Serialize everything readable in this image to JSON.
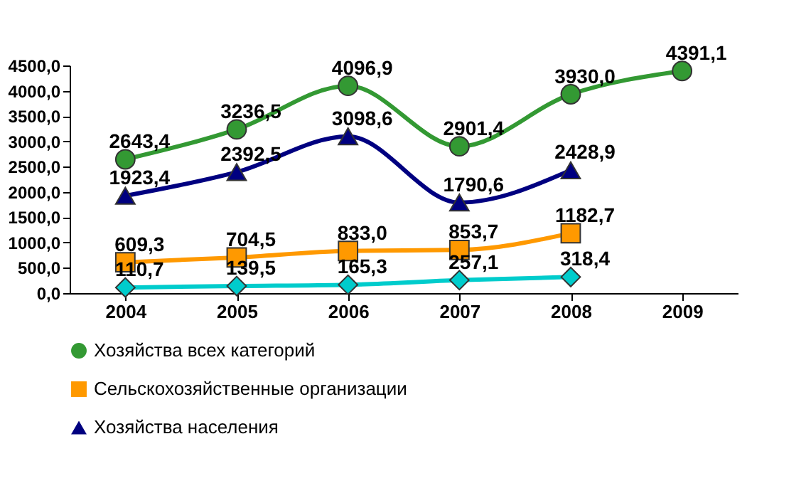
{
  "chart_data": {
    "type": "line",
    "categories": [
      "2004",
      "2005",
      "2006",
      "2007",
      "2008",
      "2009"
    ],
    "ylim": [
      0,
      4500
    ],
    "yticks": [
      {
        "value": 0,
        "label": "0,0"
      },
      {
        "value": 500,
        "label": "500,0"
      },
      {
        "value": 1000,
        "label": "1000,0"
      },
      {
        "value": 1500,
        "label": "1500,0"
      },
      {
        "value": 2000,
        "label": "2000,0"
      },
      {
        "value": 2500,
        "label": "2500,0"
      },
      {
        "value": 3000,
        "label": "3000,0"
      },
      {
        "value": 3500,
        "label": "3500,0"
      },
      {
        "value": 4000,
        "label": "4000,0"
      },
      {
        "value": 4500,
        "label": "4500,0"
      }
    ],
    "grid": false,
    "legend": "bottom",
    "series": [
      {
        "name": "Хозяйства всех категорий",
        "color": "#339933",
        "marker": "circle",
        "values": [
          2643.4,
          3236.5,
          4096.9,
          2901.4,
          3930.0,
          4391.1
        ],
        "value_labels": [
          "2643,4",
          "3236,5",
          "4096,9",
          "2901,4",
          "3930,0",
          "4391,1"
        ]
      },
      {
        "name": "Сельскохозяйственные организации",
        "color": "#ff9900",
        "marker": "square",
        "values": [
          609.3,
          704.5,
          833.0,
          853.7,
          1182.7,
          null
        ],
        "value_labels": [
          "609,3",
          "704,5",
          "833,0",
          "853,7",
          "1182,7",
          null
        ]
      },
      {
        "name": "Хозяйства населения",
        "color": "#000080",
        "marker": "triangle",
        "values": [
          1923.4,
          2392.5,
          3098.6,
          1790.6,
          2428.9,
          null
        ],
        "value_labels": [
          "1923,4",
          "2392,5",
          "3098,6",
          "1790,6",
          "2428,9",
          null
        ]
      },
      {
        "color": "#00cccc",
        "marker": "diamond",
        "values": [
          110.7,
          139.5,
          165.3,
          257.1,
          318.4,
          null
        ],
        "value_labels": [
          "110,7",
          "139,5",
          "165,3",
          "257,1",
          "318,4",
          null
        ]
      }
    ]
  }
}
